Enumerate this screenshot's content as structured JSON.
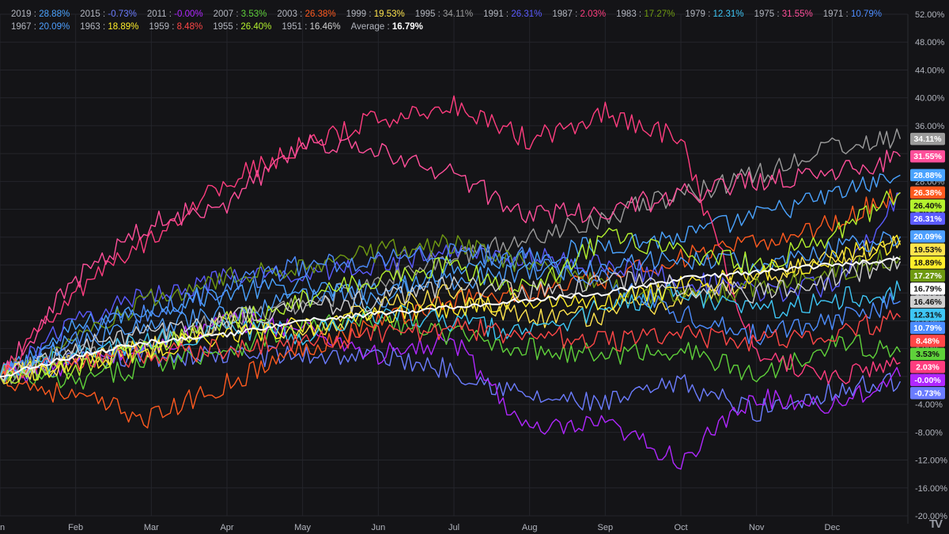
{
  "chart_data": {
    "type": "line",
    "y_unit": "%",
    "y_ticks": [
      52,
      48,
      44,
      40,
      36,
      32,
      28,
      24,
      20,
      16,
      12,
      8,
      4,
      0,
      -4,
      -8,
      -12,
      -16,
      -20
    ],
    "y_tick_labels": [
      "52.00%",
      "48.00%",
      "44.00%",
      "40.00%",
      "36.00%",
      "32.00%",
      "28.00%",
      "24.00%",
      "20.00%",
      "16.00%",
      "12.00%",
      "8.00%",
      "4.00%",
      "0.00%",
      "-4.00%",
      "-8.00%",
      "-12.00%",
      "-16.00%",
      "-20.00%"
    ],
    "ylim": [
      -20,
      52
    ],
    "x_months": [
      "Jan",
      "Feb",
      "Mar",
      "Apr",
      "May",
      "Jun",
      "Jul",
      "Aug",
      "Sep",
      "Oct",
      "Nov",
      "Dec"
    ],
    "x_tick_labels": [
      "n",
      "Feb",
      "Mar",
      "Apr",
      "May",
      "Jun",
      "Jul",
      "Aug",
      "Sep",
      "Oct",
      "Nov",
      "Dec"
    ],
    "grid": true,
    "legend": "top-left",
    "series": [
      {
        "name": "2019",
        "value_label": "28.88%",
        "color": "#4aa3ff",
        "points": [
          [
            0,
            0
          ],
          [
            1,
            7
          ],
          [
            2,
            10
          ],
          [
            3,
            12
          ],
          [
            4,
            13
          ],
          [
            5,
            11
          ],
          [
            6,
            16
          ],
          [
            7,
            17
          ],
          [
            8,
            19
          ],
          [
            9,
            20
          ],
          [
            10,
            23
          ],
          [
            11,
            26
          ],
          [
            11.9,
            28.9
          ]
        ]
      },
      {
        "name": "2015",
        "value_label": "-0.73%",
        "color": "#6b7cff",
        "points": [
          [
            0,
            0
          ],
          [
            1,
            2
          ],
          [
            2,
            3
          ],
          [
            3,
            3
          ],
          [
            4,
            3
          ],
          [
            5,
            3
          ],
          [
            6,
            1
          ],
          [
            7,
            -3
          ],
          [
            8,
            -4
          ],
          [
            9,
            -1
          ],
          [
            10,
            -5
          ],
          [
            11,
            -2
          ],
          [
            11.9,
            -0.7
          ]
        ]
      },
      {
        "name": "2011",
        "value_label": "-0.00%",
        "color": "#b027ff",
        "points": [
          [
            0,
            0
          ],
          [
            1,
            2
          ],
          [
            2,
            4
          ],
          [
            3,
            8
          ],
          [
            4,
            7
          ],
          [
            5,
            3
          ],
          [
            6,
            5
          ],
          [
            7,
            -8
          ],
          [
            8,
            -7
          ],
          [
            9,
            -12
          ],
          [
            10,
            -3
          ],
          [
            11,
            -4
          ],
          [
            11.9,
            0
          ]
        ]
      },
      {
        "name": "2007",
        "value_label": "3.53%",
        "color": "#5fd13a",
        "points": [
          [
            0,
            0
          ],
          [
            1,
            -1
          ],
          [
            2,
            2
          ],
          [
            3,
            4
          ],
          [
            4,
            7
          ],
          [
            5,
            8
          ],
          [
            6,
            6
          ],
          [
            7,
            4
          ],
          [
            8,
            3
          ],
          [
            9,
            4
          ],
          [
            10,
            0
          ],
          [
            11,
            5
          ],
          [
            11.9,
            3.5
          ]
        ]
      },
      {
        "name": "2003",
        "value_label": "26.38%",
        "color": "#ff5a1f",
        "points": [
          [
            0,
            0
          ],
          [
            1,
            -3
          ],
          [
            2,
            -6
          ],
          [
            3,
            -1
          ],
          [
            4,
            4
          ],
          [
            5,
            8
          ],
          [
            6,
            11
          ],
          [
            7,
            12
          ],
          [
            8,
            14
          ],
          [
            9,
            17
          ],
          [
            10,
            19
          ],
          [
            11,
            22
          ],
          [
            11.9,
            26.4
          ]
        ]
      },
      {
        "name": "1999",
        "value_label": "19.53%",
        "color": "#ffe44d",
        "points": [
          [
            0,
            0
          ],
          [
            1,
            2
          ],
          [
            2,
            4
          ],
          [
            3,
            8
          ],
          [
            4,
            6
          ],
          [
            5,
            10
          ],
          [
            6,
            12
          ],
          [
            7,
            8
          ],
          [
            8,
            9
          ],
          [
            9,
            11
          ],
          [
            10,
            14
          ],
          [
            11,
            17
          ],
          [
            11.9,
            19.5
          ]
        ]
      },
      {
        "name": "1995",
        "value_label": "34.11%",
        "color": "#9b9b9b",
        "points": [
          [
            0,
            0
          ],
          [
            1,
            3
          ],
          [
            2,
            5
          ],
          [
            3,
            8
          ],
          [
            4,
            10
          ],
          [
            5,
            14
          ],
          [
            6,
            17
          ],
          [
            7,
            20
          ],
          [
            8,
            23
          ],
          [
            9,
            26
          ],
          [
            10,
            29
          ],
          [
            11,
            33
          ],
          [
            11.9,
            34.1
          ]
        ]
      },
      {
        "name": "1991",
        "value_label": "26.31%",
        "color": "#5b5bff",
        "points": [
          [
            0,
            0
          ],
          [
            1,
            8
          ],
          [
            2,
            12
          ],
          [
            3,
            14
          ],
          [
            4,
            15
          ],
          [
            5,
            16
          ],
          [
            6,
            18
          ],
          [
            7,
            17
          ],
          [
            8,
            16
          ],
          [
            9,
            14
          ],
          [
            10,
            12
          ],
          [
            11,
            13
          ],
          [
            11.9,
            26.3
          ]
        ]
      },
      {
        "name": "1987",
        "value_label": "2.03%",
        "color": "#ff3d7f",
        "points": [
          [
            0,
            0
          ],
          [
            1,
            12
          ],
          [
            2,
            20
          ],
          [
            3,
            28
          ],
          [
            4,
            33
          ],
          [
            5,
            37
          ],
          [
            6,
            39
          ],
          [
            7,
            34
          ],
          [
            8,
            38
          ],
          [
            9,
            34
          ],
          [
            10,
            3
          ],
          [
            11,
            0
          ],
          [
            11.9,
            2
          ]
        ]
      },
      {
        "name": "1983",
        "value_label": "17.27%",
        "color": "#6f9a12",
        "points": [
          [
            0,
            0
          ],
          [
            1,
            5
          ],
          [
            2,
            11
          ],
          [
            3,
            14
          ],
          [
            4,
            16
          ],
          [
            5,
            18
          ],
          [
            6,
            19
          ],
          [
            7,
            16
          ],
          [
            8,
            13
          ],
          [
            9,
            11
          ],
          [
            10,
            13
          ],
          [
            11,
            15
          ],
          [
            11.9,
            17.3
          ]
        ]
      },
      {
        "name": "1979",
        "value_label": "12.31%",
        "color": "#3ec6f5",
        "points": [
          [
            0,
            0
          ],
          [
            1,
            3
          ],
          [
            2,
            5
          ],
          [
            3,
            7
          ],
          [
            4,
            6
          ],
          [
            5,
            9
          ],
          [
            6,
            8
          ],
          [
            7,
            6
          ],
          [
            8,
            10
          ],
          [
            9,
            12
          ],
          [
            10,
            9
          ],
          [
            11,
            11
          ],
          [
            11.9,
            12.3
          ]
        ]
      },
      {
        "name": "1975",
        "value_label": "31.55%",
        "color": "#ff4f9a",
        "points": [
          [
            0,
            0
          ],
          [
            1,
            14
          ],
          [
            2,
            22
          ],
          [
            3,
            25
          ],
          [
            4,
            34
          ],
          [
            5,
            32
          ],
          [
            6,
            29
          ],
          [
            7,
            23
          ],
          [
            8,
            24
          ],
          [
            9,
            26
          ],
          [
            10,
            28
          ],
          [
            11,
            29
          ],
          [
            11.9,
            31.6
          ]
        ]
      },
      {
        "name": "1971",
        "value_label": "10.79%",
        "color": "#4d8dff",
        "points": [
          [
            0,
            0
          ],
          [
            1,
            6
          ],
          [
            2,
            9
          ],
          [
            3,
            13
          ],
          [
            4,
            16
          ],
          [
            5,
            17
          ],
          [
            6,
            18
          ],
          [
            7,
            17
          ],
          [
            8,
            14
          ],
          [
            9,
            9
          ],
          [
            10,
            6
          ],
          [
            11,
            8
          ],
          [
            11.9,
            10.8
          ]
        ]
      },
      {
        "name": "1967",
        "value_label": "20.09%",
        "color": "#4d9fff",
        "points": [
          [
            0,
            0
          ],
          [
            1,
            5
          ],
          [
            2,
            7
          ],
          [
            3,
            9
          ],
          [
            4,
            11
          ],
          [
            5,
            13
          ],
          [
            6,
            14
          ],
          [
            7,
            15
          ],
          [
            8,
            16
          ],
          [
            9,
            17
          ],
          [
            10,
            16
          ],
          [
            11,
            18
          ],
          [
            11.9,
            20.1
          ]
        ]
      },
      {
        "name": "1963",
        "value_label": "18.89%",
        "color": "#ffee2a",
        "points": [
          [
            0,
            0
          ],
          [
            1,
            2
          ],
          [
            2,
            4
          ],
          [
            3,
            6
          ],
          [
            4,
            7
          ],
          [
            5,
            9
          ],
          [
            6,
            10
          ],
          [
            7,
            11
          ],
          [
            8,
            11
          ],
          [
            9,
            13
          ],
          [
            10,
            15
          ],
          [
            11,
            17
          ],
          [
            11.9,
            18.9
          ]
        ]
      },
      {
        "name": "1959",
        "value_label": "8.48%",
        "color": "#ff4747",
        "points": [
          [
            0,
            0
          ],
          [
            1,
            2
          ],
          [
            2,
            3
          ],
          [
            3,
            4
          ],
          [
            4,
            5
          ],
          [
            5,
            6
          ],
          [
            6,
            7
          ],
          [
            7,
            6
          ],
          [
            8,
            5
          ],
          [
            9,
            6
          ],
          [
            10,
            5
          ],
          [
            11,
            6
          ],
          [
            11.9,
            8.5
          ]
        ]
      },
      {
        "name": "1955",
        "value_label": "26.40%",
        "color": "#b4f22e",
        "points": [
          [
            0,
            0
          ],
          [
            1,
            1
          ],
          [
            2,
            4
          ],
          [
            3,
            8
          ],
          [
            4,
            11
          ],
          [
            5,
            14
          ],
          [
            6,
            16
          ],
          [
            7,
            12
          ],
          [
            8,
            20
          ],
          [
            9,
            18
          ],
          [
            10,
            16
          ],
          [
            11,
            20
          ],
          [
            11.9,
            26.4
          ]
        ]
      },
      {
        "name": "1951",
        "value_label": "16.46%",
        "color": "#d0d0d0",
        "points": [
          [
            0,
            0
          ],
          [
            1,
            4
          ],
          [
            2,
            6
          ],
          [
            3,
            8
          ],
          [
            4,
            10
          ],
          [
            5,
            11
          ],
          [
            6,
            13
          ],
          [
            7,
            12
          ],
          [
            8,
            14
          ],
          [
            9,
            13
          ],
          [
            10,
            12
          ],
          [
            11,
            14
          ],
          [
            11.9,
            16.5
          ]
        ]
      },
      {
        "name": "Average",
        "value_label": "16.79%",
        "color": "#ffffff",
        "points": [
          [
            0,
            0
          ],
          [
            1,
            3
          ],
          [
            2,
            5
          ],
          [
            3,
            6
          ],
          [
            4,
            8
          ],
          [
            5,
            9
          ],
          [
            6,
            10
          ],
          [
            7,
            11
          ],
          [
            8,
            12
          ],
          [
            9,
            14
          ],
          [
            10,
            15
          ],
          [
            11,
            16
          ],
          [
            11.9,
            16.8
          ]
        ]
      }
    ]
  },
  "logo_text": "TV"
}
